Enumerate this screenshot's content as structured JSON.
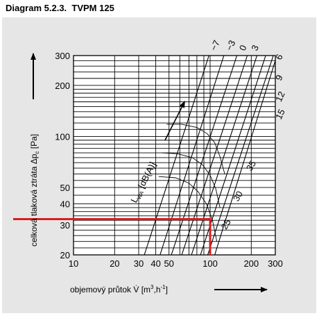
{
  "title": "Diagram 5.2.3.  TVPM 125",
  "chart_data": {
    "type": "line",
    "x_scale": "log",
    "y_scale": "log",
    "xlabel_main": "objemový průtok V̇ [m",
    "xlabel_sup1": "3",
    "xlabel_mid": ",h",
    "xlabel_sup2": "-1",
    "xlabel_end": "]",
    "ylabel_main": "celková tlaková ztráta ",
    "ylabel_sym": "Δp",
    "ylabel_sub": "c",
    "ylabel_unit": " [Pa]",
    "xlim": [
      10,
      300
    ],
    "ylim": [
      20,
      300
    ],
    "x_ticks": [
      {
        "value": 10,
        "label": "10"
      },
      {
        "value": 20,
        "label": "20"
      },
      {
        "value": 30,
        "label": "30"
      },
      {
        "value": 40,
        "label": "40"
      },
      {
        "value": 50,
        "label": "50"
      },
      {
        "value": 100,
        "label": "100"
      },
      {
        "value": 200,
        "label": "200"
      },
      {
        "value": 300,
        "label": "300"
      }
    ],
    "y_ticks": [
      {
        "value": 20,
        "label": "20"
      },
      {
        "value": 30,
        "label": "30"
      },
      {
        "value": 40,
        "label": "40"
      },
      {
        "value": 50,
        "label": "50"
      },
      {
        "value": 100,
        "label": "100"
      },
      {
        "value": 200,
        "label": "200"
      },
      {
        "value": 300,
        "label": "300"
      }
    ],
    "x_grid": [
      10,
      20,
      30,
      40,
      50,
      60,
      70,
      80,
      90,
      100,
      200,
      300
    ],
    "y_grid": [
      20,
      22,
      24,
      26,
      28,
      30,
      32,
      34,
      36,
      38,
      40,
      45,
      50,
      55,
      60,
      65,
      70,
      75,
      80,
      85,
      90,
      95,
      100,
      110,
      120,
      130,
      140,
      150,
      160,
      170,
      180,
      190,
      200,
      220,
      240,
      260,
      280,
      300
    ],
    "series": [
      {
        "name": "-7",
        "x": [
          33,
          98
        ],
        "y": [
          20,
          300
        ]
      },
      {
        "name": "-3",
        "x": [
          43,
          126
        ],
        "y": [
          20,
          300
        ]
      },
      {
        "name": "0",
        "x": [
          52,
          157
        ],
        "y": [
          20,
          300
        ]
      },
      {
        "name": "3",
        "x": [
          62,
          187
        ],
        "y": [
          20,
          300
        ]
      },
      {
        "name": "6",
        "x": [
          73,
          220
        ],
        "y": [
          20,
          300
        ]
      },
      {
        "name": "9",
        "x": [
          85,
          255
        ],
        "y": [
          20,
          300
        ]
      },
      {
        "name": "12",
        "x": [
          96,
          290
        ],
        "y": [
          20,
          300
        ]
      },
      {
        "name": "15",
        "x": [
          108,
          300
        ],
        "y": [
          20,
          280
        ]
      }
    ],
    "series_labels": [
      {
        "text": "−7",
        "x": 100,
        "y": 300,
        "rotate": -65
      },
      {
        "text": "−3",
        "x": 130,
        "y": 300,
        "rotate": -65
      },
      {
        "text": "0",
        "x": 163,
        "y": 300,
        "rotate": -65
      },
      {
        "text": "3",
        "x": 200,
        "y": 300,
        "rotate": -65
      },
      {
        "text": "6",
        "x": 300,
        "y": 265,
        "rotate": -65
      },
      {
        "text": "9",
        "x": 300,
        "y": 200,
        "rotate": -65
      },
      {
        "text": "12",
        "x": 300,
        "y": 150,
        "rotate": -65
      },
      {
        "text": "15",
        "x": 300,
        "y": 118,
        "rotate": -65
      }
    ],
    "noise_curves": [
      {
        "name": "35",
        "x": [
          48,
          62,
          80,
          95,
          108,
          118,
          128
        ],
        "y": [
          118,
          118,
          113,
          104,
          92,
          76,
          60
        ]
      },
      {
        "name": "30",
        "x": [
          44,
          58,
          74,
          88,
          100,
          110,
          118
        ],
        "y": [
          80,
          79,
          75,
          68,
          59,
          49,
          38
        ]
      },
      {
        "name": "25",
        "x": [
          42,
          56,
          70,
          82,
          94,
          104,
          112
        ],
        "y": [
          58,
          57,
          53,
          47,
          40,
          32,
          24
        ]
      }
    ],
    "noise_labels": [
      {
        "text": "35",
        "x": 200,
        "y": 62,
        "rotate": -60
      },
      {
        "text": "30",
        "x": 160,
        "y": 41,
        "rotate": -60
      },
      {
        "text": "25",
        "x": 131,
        "y": 28,
        "rotate": -60
      }
    ],
    "noise_axis_main": "L",
    "noise_axis_sub": "WA",
    "noise_axis_unit": "[dB(A)]",
    "operating_point": {
      "x": 100,
      "y": 32.5,
      "color": "#d81e1e"
    }
  }
}
